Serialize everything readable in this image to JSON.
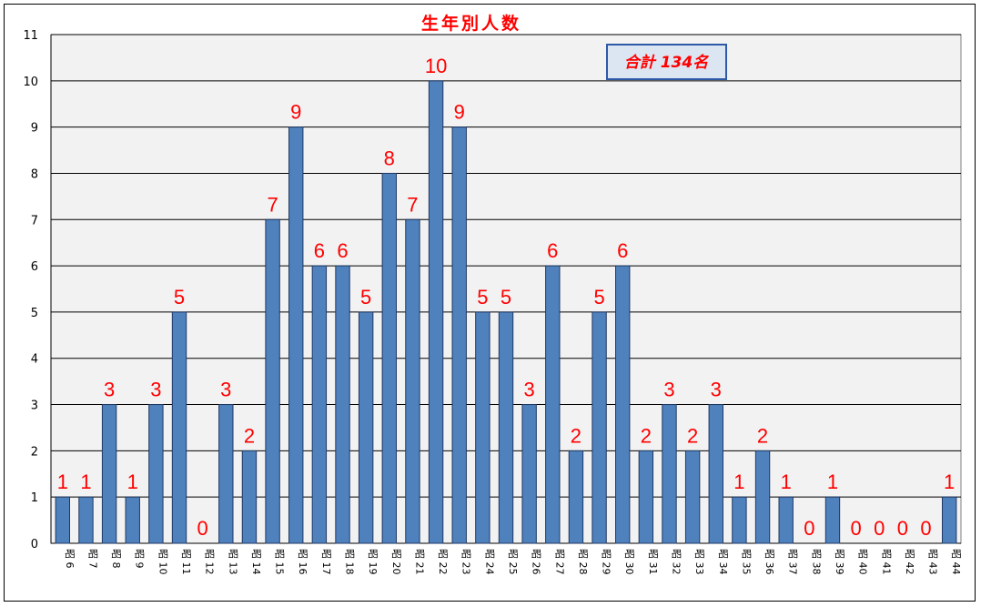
{
  "chart_data": {
    "type": "bar",
    "title": "生年別人数",
    "annotation": "合計 134名",
    "xlabel": "",
    "ylabel": "",
    "ylim": [
      0,
      11
    ],
    "yticks": [
      "0",
      "1",
      "2",
      "3",
      "4",
      "5",
      "6",
      "7",
      "8",
      "9",
      "10",
      "11"
    ],
    "grid": true,
    "categories": [
      "昭 6",
      "昭 7",
      "昭 8",
      "昭 9",
      "昭 10",
      "昭 11",
      "昭 12",
      "昭 13",
      "昭 14",
      "昭 15",
      "昭 16",
      "昭 17",
      "昭 18",
      "昭 19",
      "昭 20",
      "昭 21",
      "昭 22",
      "昭 23",
      "昭 24",
      "昭 25",
      "昭 26",
      "昭 27",
      "昭 28",
      "昭 29",
      "昭 30",
      "昭 31",
      "昭 32",
      "昭 33",
      "昭 34",
      "昭 35",
      "昭 36",
      "昭 37",
      "昭 38",
      "昭 39",
      "昭 40",
      "昭 41",
      "昭 42",
      "昭 43",
      "昭 44"
    ],
    "values": [
      1,
      1,
      3,
      1,
      3,
      5,
      0,
      3,
      2,
      7,
      9,
      6,
      6,
      5,
      8,
      7,
      10,
      9,
      5,
      5,
      3,
      6,
      2,
      5,
      6,
      2,
      3,
      2,
      3,
      1,
      2,
      1,
      0,
      1,
      0,
      0,
      0,
      0,
      1
    ],
    "colors": {
      "bar": "#4f81bd",
      "bar_edge": "#1f3864",
      "label": "#ff0000",
      "plot_bg": "#f2f2f2",
      "annotation_bg": "#dce6f2",
      "annotation_border": "#2e59a8"
    }
  }
}
